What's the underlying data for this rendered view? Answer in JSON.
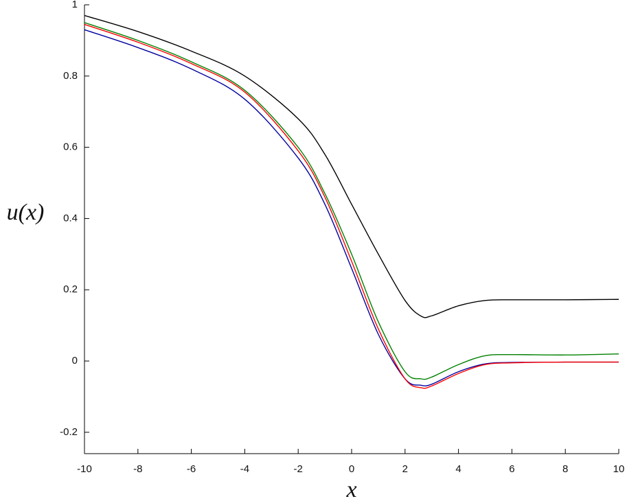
{
  "chart_data": {
    "type": "line",
    "xlabel": "x",
    "ylabel": "u(x)",
    "x": [
      -10,
      -8,
      -6,
      -4,
      -2,
      -1,
      0,
      1,
      2,
      2.6,
      3,
      4,
      5,
      6,
      8,
      10
    ],
    "series": [
      {
        "color": "#000000",
        "values": [
          0.97,
          0.925,
          0.87,
          0.8,
          0.68,
          0.58,
          0.44,
          0.3,
          0.17,
          0.126,
          0.127,
          0.155,
          0.17,
          0.172,
          0.172,
          0.173
        ]
      },
      {
        "color": "#008000",
        "values": [
          0.95,
          0.9,
          0.84,
          0.76,
          0.6,
          0.47,
          0.3,
          0.11,
          -0.03,
          -0.05,
          -0.045,
          -0.01,
          0.015,
          0.018,
          0.017,
          0.02
        ]
      },
      {
        "color": "#0000a0",
        "values": [
          0.93,
          0.88,
          0.82,
          0.735,
          0.57,
          0.44,
          0.26,
          0.075,
          -0.05,
          -0.068,
          -0.065,
          -0.03,
          -0.008,
          -0.004,
          -0.003,
          -0.003
        ]
      },
      {
        "color": "#ff0000",
        "values": [
          0.945,
          0.895,
          0.835,
          0.755,
          0.59,
          0.46,
          0.28,
          0.09,
          -0.05,
          -0.075,
          -0.07,
          -0.035,
          -0.01,
          -0.005,
          -0.003,
          -0.003
        ]
      }
    ],
    "xlim": [
      -10,
      10
    ],
    "ylim": [
      -0.26,
      1
    ],
    "xticks": [
      -10,
      -8,
      -6,
      -4,
      -2,
      0,
      2,
      4,
      6,
      8,
      10
    ],
    "yticks": [
      -0.2,
      0,
      0.2,
      0.4,
      0.6,
      0.8,
      1
    ]
  }
}
